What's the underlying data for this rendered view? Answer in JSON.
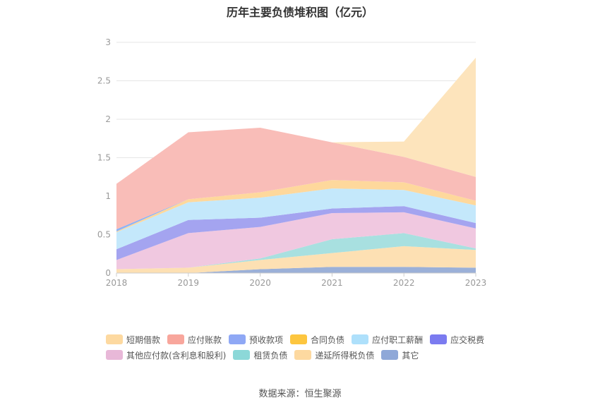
{
  "chart_data": {
    "type": "area",
    "title": "历年主要负债堆积图（亿元）",
    "categories": [
      "2018",
      "2019",
      "2020",
      "2021",
      "2022",
      "2023"
    ],
    "ylim": [
      0,
      3
    ],
    "yticks": [
      "0",
      "0.5",
      "1",
      "1.5",
      "2",
      "2.5",
      "3"
    ],
    "stacked": true,
    "grid": true,
    "legend_position": "bottom",
    "series": [
      {
        "name": "其它",
        "color": "#9bb0d8",
        "values": [
          0.0,
          0.0,
          0.05,
          0.08,
          0.08,
          0.07
        ]
      },
      {
        "name": "递延所得税负债",
        "color": "#fde0b3",
        "values": [
          0.05,
          0.07,
          0.12,
          0.18,
          0.27,
          0.23
        ]
      },
      {
        "name": "租赁负债",
        "color": "#a8e0e0",
        "values": [
          0.0,
          0.0,
          0.02,
          0.18,
          0.17,
          0.02
        ]
      },
      {
        "name": "其他应付款(含利息和股利)",
        "color": "#f0c8e0",
        "values": [
          0.12,
          0.45,
          0.41,
          0.34,
          0.27,
          0.26
        ]
      },
      {
        "name": "应交税费",
        "color": "#a4a4f0",
        "values": [
          0.14,
          0.17,
          0.12,
          0.06,
          0.08,
          0.07
        ]
      },
      {
        "name": "应付职工薪酬",
        "color": "#c4e8fb",
        "values": [
          0.22,
          0.23,
          0.26,
          0.26,
          0.21,
          0.23
        ]
      },
      {
        "name": "合同负债",
        "color": "#fed89c",
        "values": [
          0.01,
          0.04,
          0.07,
          0.11,
          0.1,
          0.06
        ]
      },
      {
        "name": "预收款项",
        "color": "#8fb4f5",
        "values": [
          0.03,
          0.0,
          0.0,
          0.0,
          0.0,
          0.0
        ]
      },
      {
        "name": "应付账款",
        "color": "#f9bdb8",
        "values": [
          0.59,
          0.87,
          0.84,
          0.49,
          0.33,
          0.31
        ]
      },
      {
        "name": "短期借款",
        "color": "#fde4bc",
        "values": [
          0.0,
          0.0,
          0.0,
          0.0,
          0.2,
          1.55
        ]
      }
    ]
  },
  "legend": {
    "row1": [
      {
        "name": "短期借款",
        "color": "#fdd9a0"
      },
      {
        "name": "应付账款",
        "color": "#f8a69c"
      },
      {
        "name": "预收款项",
        "color": "#8fa8f5"
      },
      {
        "name": "合同负债",
        "color": "#fdc63f"
      },
      {
        "name": "应付职工薪酬",
        "color": "#aee0fb"
      },
      {
        "name": "应交税费",
        "color": "#7b7bf0"
      }
    ],
    "row2": [
      {
        "name": "其他应付款(含利息和股利)",
        "color": "#e8b8d8"
      },
      {
        "name": "租赁负债",
        "color": "#8cd8d8"
      },
      {
        "name": "递延所得税负债",
        "color": "#fdd9a0"
      },
      {
        "name": "其它",
        "color": "#8fa8d8"
      }
    ]
  },
  "source": "数据来源：恒生聚源"
}
